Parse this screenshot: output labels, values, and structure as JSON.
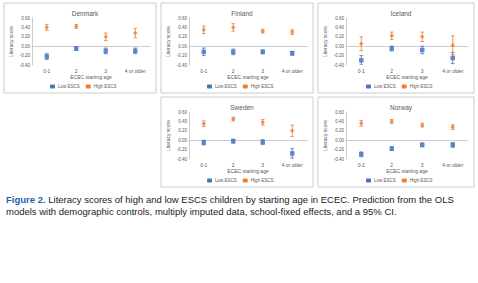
{
  "chart_data": [
    {
      "type": "scatter",
      "title": "Denmark",
      "x_label": "ECEC starting age",
      "y_label": "Literacy score",
      "categories": [
        "0-1",
        "2",
        "3",
        "4 or older"
      ],
      "ylim": [
        -0.4,
        0.6
      ],
      "yticks": [
        {
          "value": -0.4,
          "label": "-0.40"
        },
        {
          "value": -0.2,
          "label": "-0.20"
        },
        {
          "value": 0,
          "label": "0.00"
        },
        {
          "value": 0.2,
          "label": "0.20"
        },
        {
          "value": 0.4,
          "label": "0.40"
        },
        {
          "value": 0.6,
          "label": "0.60"
        }
      ],
      "grid": false,
      "legend": "bottom",
      "series": [
        {
          "name": "Low ESCS",
          "color": "#4472c4",
          "marker": "square",
          "values": [
            -0.22,
            -0.05,
            -0.1,
            -0.1
          ],
          "errors": [
            0.06,
            0.04,
            0.06,
            0.06
          ]
        },
        {
          "name": "High ESCS",
          "color": "#ed7d31",
          "marker": "diamond",
          "values": [
            0.4,
            0.42,
            0.2,
            0.28
          ],
          "errors": [
            0.06,
            0.04,
            0.08,
            0.1
          ]
        }
      ]
    },
    {
      "type": "scatter",
      "title": "Finland",
      "x_label": "ECEC starting age",
      "y_label": "Literacy score",
      "categories": [
        "0-1",
        "2",
        "3",
        "4 or older"
      ],
      "ylim": [
        -0.4,
        0.6
      ],
      "yticks": [
        {
          "value": -0.4,
          "label": "-0.40"
        },
        {
          "value": -0.2,
          "label": "-0.20"
        },
        {
          "value": 0,
          "label": "0.00"
        },
        {
          "value": 0.2,
          "label": "0.20"
        },
        {
          "value": 0.4,
          "label": "0.40"
        },
        {
          "value": 0.6,
          "label": "0.60"
        }
      ],
      "grid": false,
      "legend": "bottom",
      "series": [
        {
          "name": "Low ESCS",
          "color": "#4472c4",
          "marker": "square",
          "values": [
            -0.12,
            -0.12,
            -0.12,
            -0.15
          ],
          "errors": [
            0.08,
            0.06,
            0.04,
            0.04
          ]
        },
        {
          "name": "High ESCS",
          "color": "#ed7d31",
          "marker": "diamond",
          "values": [
            0.35,
            0.4,
            0.32,
            0.3
          ],
          "errors": [
            0.08,
            0.08,
            0.04,
            0.05
          ]
        }
      ]
    },
    {
      "type": "scatter",
      "title": "Iceland",
      "x_label": "ECEC starting age",
      "y_label": "Literacy score",
      "categories": [
        "0-1",
        "2",
        "3",
        "4 or older"
      ],
      "ylim": [
        -0.4,
        0.6
      ],
      "yticks": [
        {
          "value": -0.4,
          "label": "-0.40"
        },
        {
          "value": -0.2,
          "label": "-0.20"
        },
        {
          "value": 0,
          "label": "0.00"
        },
        {
          "value": 0.2,
          "label": "0.20"
        },
        {
          "value": 0.4,
          "label": "0.40"
        },
        {
          "value": 0.6,
          "label": "0.60"
        }
      ],
      "grid": false,
      "legend": "bottom",
      "series": [
        {
          "name": "Low ESCS",
          "color": "#4472c4",
          "marker": "square",
          "values": [
            -0.3,
            -0.05,
            -0.08,
            -0.25
          ],
          "errors": [
            0.1,
            0.05,
            0.08,
            0.12
          ]
        },
        {
          "name": "High ESCS",
          "color": "#ed7d31",
          "marker": "diamond",
          "values": [
            0.05,
            0.22,
            0.2,
            0.02
          ],
          "errors": [
            0.15,
            0.08,
            0.1,
            0.2
          ]
        }
      ]
    },
    {
      "type": "scatter",
      "title": "Sweden",
      "x_label": "ECEC starting age",
      "y_label": "Literacy score",
      "categories": [
        "0-1",
        "2",
        "3",
        "4 or older"
      ],
      "ylim": [
        -0.4,
        0.6
      ],
      "yticks": [
        {
          "value": -0.4,
          "label": "-0.40"
        },
        {
          "value": -0.2,
          "label": "-0.20"
        },
        {
          "value": 0,
          "label": "0.00"
        },
        {
          "value": 0.2,
          "label": "0.20"
        },
        {
          "value": 0.4,
          "label": "0.40"
        },
        {
          "value": 0.6,
          "label": "0.60"
        }
      ],
      "grid": false,
      "legend": "bottom",
      "series": [
        {
          "name": "Low ESCS",
          "color": "#4472c4",
          "marker": "square",
          "values": [
            -0.05,
            -0.02,
            -0.04,
            -0.28
          ],
          "errors": [
            0.05,
            0.04,
            0.05,
            0.1
          ]
        },
        {
          "name": "High ESCS",
          "color": "#ed7d31",
          "marker": "diamond",
          "values": [
            0.35,
            0.45,
            0.38,
            0.2
          ],
          "errors": [
            0.06,
            0.04,
            0.06,
            0.12
          ]
        }
      ]
    },
    {
      "type": "scatter",
      "title": "Norway",
      "x_label": "ECEC starting age",
      "y_label": "Literacy score",
      "categories": [
        "0-1",
        "2",
        "3",
        "4 or older"
      ],
      "ylim": [
        -0.4,
        0.6
      ],
      "yticks": [
        {
          "value": -0.4,
          "label": "-0.40"
        },
        {
          "value": -0.2,
          "label": "-0.20"
        },
        {
          "value": 0,
          "label": "0.00"
        },
        {
          "value": 0.2,
          "label": "0.20"
        },
        {
          "value": 0.4,
          "label": "0.40"
        },
        {
          "value": 0.6,
          "label": "0.60"
        }
      ],
      "grid": false,
      "legend": "bottom",
      "series": [
        {
          "name": "Low ESCS",
          "color": "#4472c4",
          "marker": "square",
          "values": [
            -0.3,
            -0.18,
            -0.1,
            -0.1
          ],
          "errors": [
            0.05,
            0.04,
            0.04,
            0.05
          ]
        },
        {
          "name": "High ESCS",
          "color": "#ed7d31",
          "marker": "diamond",
          "values": [
            0.36,
            0.4,
            0.32,
            0.28
          ],
          "errors": [
            0.06,
            0.04,
            0.04,
            0.05
          ]
        }
      ]
    }
  ],
  "caption": {
    "label": "Figure 2.",
    "text": "Literacy scores of high and low ESCS children by starting age in ECEC. Prediction from the OLS models with demographic controls, multiply imputed data, school-fixed effects, and a 95% CI."
  }
}
